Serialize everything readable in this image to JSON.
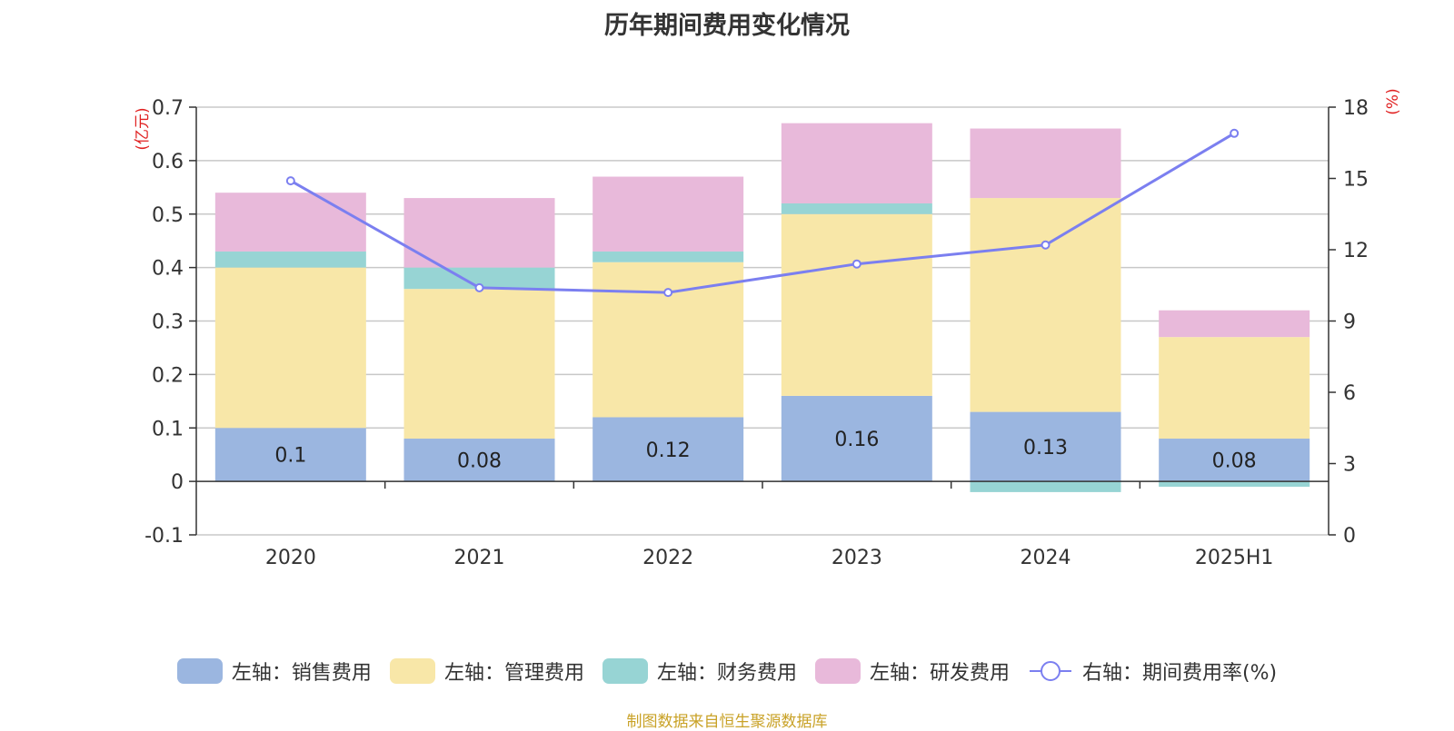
{
  "title": "历年期间费用变化情况",
  "source": "制图数据来自恒生聚源数据库",
  "chart_data": {
    "type": "bar",
    "stacked": true,
    "title": "历年期间费用变化情况",
    "categories": [
      "2020",
      "2021",
      "2022",
      "2023",
      "2024",
      "2025H1"
    ],
    "left_axis": {
      "unit": "(亿元)",
      "ylim": [
        -0.1,
        0.7
      ],
      "ticks": [
        "-0.1",
        "0",
        "0.1",
        "0.2",
        "0.3",
        "0.4",
        "0.5",
        "0.6",
        "0.7"
      ]
    },
    "right_axis": {
      "unit": "(%)",
      "ylim": [
        0,
        18
      ],
      "ticks": [
        "0",
        "3",
        "6",
        "9",
        "12",
        "15",
        "18"
      ]
    },
    "series": [
      {
        "name": "左轴：销售费用",
        "axis": "left",
        "color": "#9bb6e0",
        "values": [
          0.1,
          0.08,
          0.12,
          0.16,
          0.13,
          0.08
        ],
        "labels": [
          "0.1",
          "0.08",
          "0.12",
          "0.16",
          "0.13",
          "0.08"
        ]
      },
      {
        "name": "左轴：管理费用",
        "axis": "left",
        "color": "#f8e7a8",
        "values": [
          0.3,
          0.28,
          0.29,
          0.34,
          0.4,
          0.19
        ]
      },
      {
        "name": "左轴：财务费用",
        "axis": "left",
        "color": "#97d4d4",
        "values": [
          0.03,
          0.04,
          0.02,
          0.02,
          -0.02,
          -0.01
        ]
      },
      {
        "name": "左轴：研发费用",
        "axis": "left",
        "color": "#e8b9da",
        "values": [
          0.11,
          0.13,
          0.14,
          0.15,
          0.13,
          0.05
        ]
      },
      {
        "name": "右轴：期间费用率(%)",
        "axis": "right",
        "type": "line",
        "color": "#7b7ff0",
        "values": [
          14.9,
          10.4,
          10.2,
          11.4,
          12.2,
          16.9
        ]
      }
    ],
    "grid": true,
    "legend_position": "bottom"
  }
}
